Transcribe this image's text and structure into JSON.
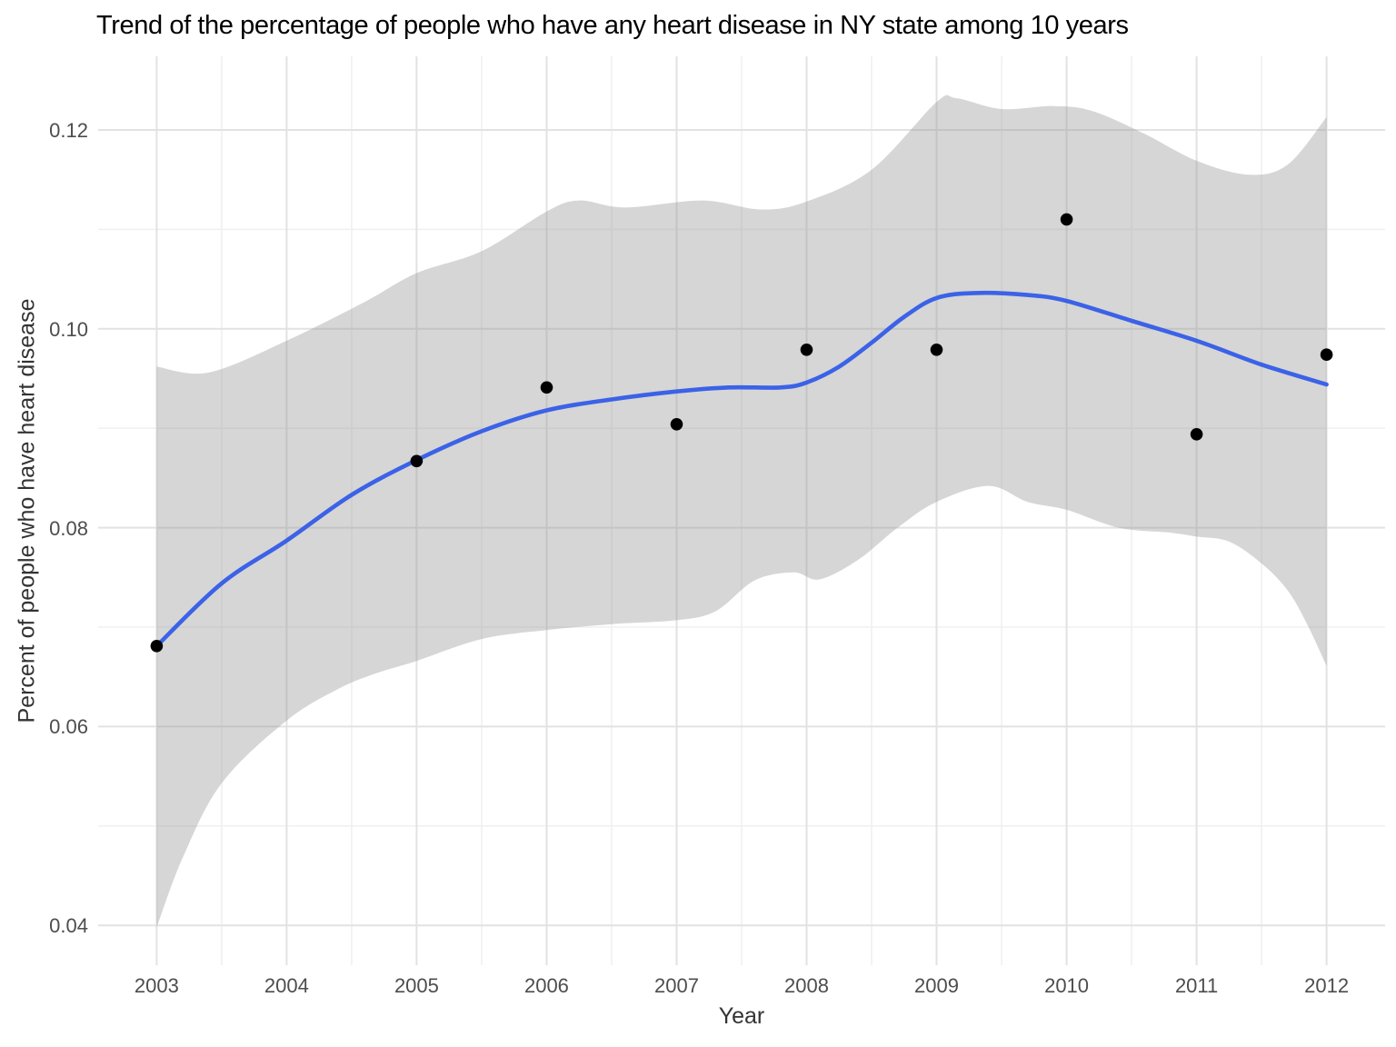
{
  "title": "Trend of the percentage of people who have any heart disease in NY state among 10 years",
  "chart_data": {
    "type": "scatter",
    "subtype": "scatter-with-loess-smooth-and-confidence-ribbon",
    "title": "Trend of the percentage of people who have any heart disease in NY state among 10 years",
    "xlabel": "Year",
    "ylabel": "Percent of people who have heart disease",
    "xlim": [
      2002.55,
      2012.45
    ],
    "ylim": [
      0.036,
      0.1274
    ],
    "grid": "on",
    "legend": "none",
    "x_major_ticks": [
      2003,
      2004,
      2005,
      2006,
      2007,
      2008,
      2009,
      2010,
      2011,
      2012
    ],
    "x_tick_labels": [
      "2003",
      "2004",
      "2005",
      "2006",
      "2007",
      "2008",
      "2009",
      "2010",
      "2011",
      "2012"
    ],
    "x_minor_ticks": [
      2003.5,
      2004.5,
      2005.5,
      2006.5,
      2007.5,
      2008.5,
      2009.5,
      2010.5,
      2011.5
    ],
    "y_major_ticks": [
      0.04,
      0.06,
      0.08,
      0.1,
      0.12
    ],
    "y_tick_labels": [
      "0.04",
      "0.06",
      "0.08",
      "0.10",
      "0.12"
    ],
    "y_minor_ticks": [
      0.05,
      0.07,
      0.09,
      0.11
    ],
    "points": [
      [
        2003,
        0.0681
      ],
      [
        2005,
        0.0867
      ],
      [
        2006,
        0.0941
      ],
      [
        2007,
        0.0904
      ],
      [
        2008,
        0.0979
      ],
      [
        2009,
        0.0979
      ],
      [
        2010,
        0.111
      ],
      [
        2011,
        0.0894
      ],
      [
        2012,
        0.0974
      ]
    ],
    "smooth_line": [
      [
        2003,
        0.0681
      ],
      [
        2003.5,
        0.0744
      ],
      [
        2004,
        0.0787
      ],
      [
        2004.5,
        0.0833
      ],
      [
        2005,
        0.0868
      ],
      [
        2005.5,
        0.0897
      ],
      [
        2006,
        0.0918
      ],
      [
        2006.5,
        0.0929
      ],
      [
        2007,
        0.0937
      ],
      [
        2007.4,
        0.0941
      ],
      [
        2007.8,
        0.0941
      ],
      [
        2008,
        0.0946
      ],
      [
        2008.25,
        0.0962
      ],
      [
        2008.5,
        0.0986
      ],
      [
        2008.75,
        0.1012
      ],
      [
        2009,
        0.1031
      ],
      [
        2009.3,
        0.1036
      ],
      [
        2009.7,
        0.1034
      ],
      [
        2010,
        0.1028
      ],
      [
        2010.5,
        0.1008
      ],
      [
        2011,
        0.0988
      ],
      [
        2011.5,
        0.0964
      ],
      [
        2012,
        0.0944
      ]
    ],
    "ribbon_upper": [
      [
        2003,
        0.0962
      ],
      [
        2003.4,
        0.0956
      ],
      [
        2004,
        0.0988
      ],
      [
        2004.6,
        0.1027
      ],
      [
        2005,
        0.1056
      ],
      [
        2005.5,
        0.1078
      ],
      [
        2006,
        0.1118
      ],
      [
        2006.25,
        0.1129
      ],
      [
        2006.6,
        0.1122
      ],
      [
        2007.2,
        0.1129
      ],
      [
        2007.65,
        0.112
      ],
      [
        2008,
        0.1128
      ],
      [
        2008.5,
        0.116
      ],
      [
        2009,
        0.1228
      ],
      [
        2009.15,
        0.1232
      ],
      [
        2009.5,
        0.1221
      ],
      [
        2009.9,
        0.1224
      ],
      [
        2010.2,
        0.1219
      ],
      [
        2010.6,
        0.1196
      ],
      [
        2011,
        0.1169
      ],
      [
        2011.4,
        0.1155
      ],
      [
        2011.7,
        0.1165
      ],
      [
        2012,
        0.1213
      ]
    ],
    "ribbon_lower": [
      [
        2003,
        0.0398
      ],
      [
        2003.2,
        0.0468
      ],
      [
        2003.5,
        0.0543
      ],
      [
        2004,
        0.0606
      ],
      [
        2004.4,
        0.0638
      ],
      [
        2004.7,
        0.0654
      ],
      [
        2005,
        0.0666
      ],
      [
        2005.5,
        0.0688
      ],
      [
        2006,
        0.0697
      ],
      [
        2006.5,
        0.0703
      ],
      [
        2007,
        0.0707
      ],
      [
        2007.3,
        0.0716
      ],
      [
        2007.6,
        0.0747
      ],
      [
        2007.9,
        0.0755
      ],
      [
        2008.1,
        0.0748
      ],
      [
        2008.4,
        0.0768
      ],
      [
        2008.7,
        0.08
      ],
      [
        2009,
        0.0826
      ],
      [
        2009.4,
        0.0842
      ],
      [
        2009.7,
        0.0826
      ],
      [
        2010,
        0.0818
      ],
      [
        2010.4,
        0.08
      ],
      [
        2010.8,
        0.0795
      ],
      [
        2011,
        0.0791
      ],
      [
        2011.25,
        0.0786
      ],
      [
        2011.5,
        0.0764
      ],
      [
        2011.7,
        0.0737
      ],
      [
        2011.85,
        0.0703
      ],
      [
        2012,
        0.0661
      ]
    ],
    "colors": {
      "line": "#3B62E7",
      "point": "#000000",
      "ribbon_fill": "#999999",
      "ribbon_alpha": 0.4,
      "grid_major": "#E2E2E2",
      "grid_minor": "#F0F0F0",
      "axis_text": "#4D4D4D",
      "title_text": "#000000",
      "background": "#FFFFFF"
    }
  }
}
